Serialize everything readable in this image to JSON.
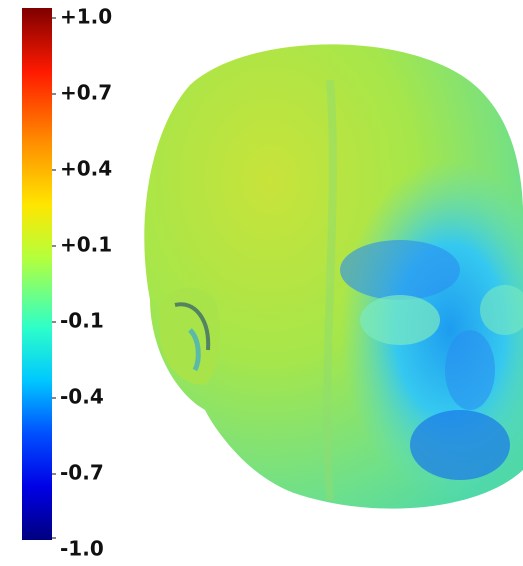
{
  "colorbar": {
    "ticks": [
      {
        "value": 1.0,
        "label": "+1.0"
      },
      {
        "value": 0.7,
        "label": "+0.7"
      },
      {
        "value": 0.4,
        "label": "+0.4"
      },
      {
        "value": 0.1,
        "label": "+0.1"
      },
      {
        "value": -0.1,
        "label": "-0.1"
      },
      {
        "value": -0.4,
        "label": "-0.4"
      },
      {
        "value": -0.7,
        "label": "-0.7"
      },
      {
        "value": -1.0,
        "label": "-1.0"
      }
    ]
  }
}
